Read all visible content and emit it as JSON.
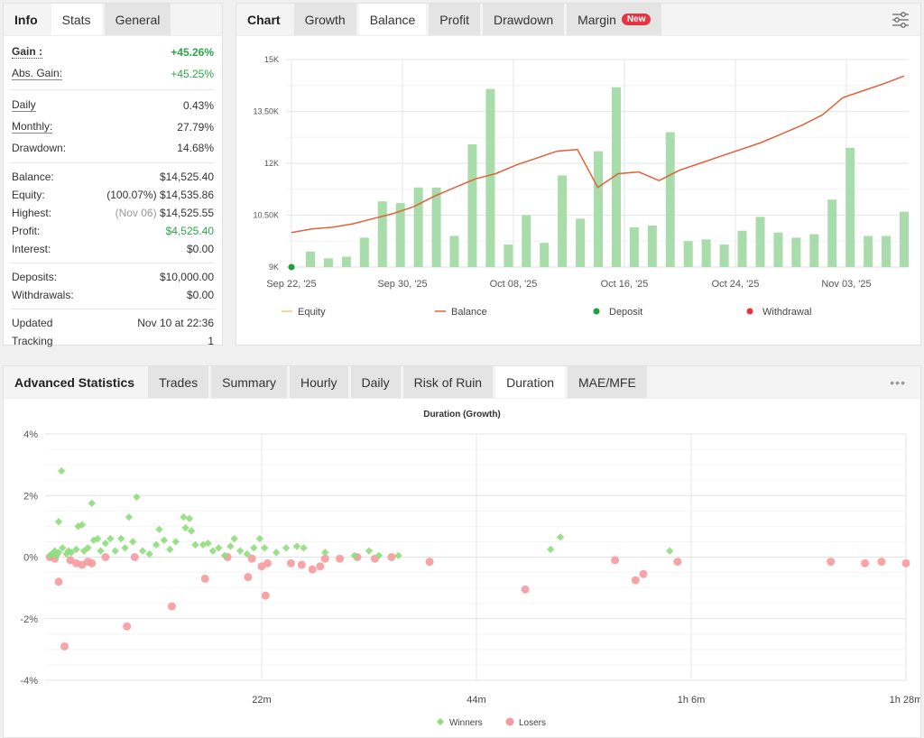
{
  "stats_panel": {
    "tabs": [
      {
        "label": "Info",
        "state": "title"
      },
      {
        "label": "Stats",
        "state": "active"
      },
      {
        "label": "General",
        "state": "inactive"
      }
    ],
    "gain": {
      "label": "Gain :",
      "value": "+45.26%"
    },
    "abs_gain": {
      "label": "Abs. Gain:",
      "value": "+45.25%"
    },
    "daily": {
      "label": "Daily",
      "value": "0.43%"
    },
    "monthly": {
      "label": "Monthly:",
      "value": "27.79%"
    },
    "drawdown": {
      "label": "Drawdown:",
      "value": "14.68%"
    },
    "balance": {
      "label": "Balance:",
      "value": "$14,525.40"
    },
    "equity": {
      "label": "Equity:",
      "prefix": "(100.07%)",
      "value": "$14,535.86"
    },
    "highest": {
      "label": "Highest:",
      "prefix": "(Nov 06)",
      "value": "$14,525.55"
    },
    "profit": {
      "label": "Profit:",
      "value": "$4,525.40"
    },
    "interest": {
      "label": "Interest:",
      "value": "$0.00"
    },
    "deposits": {
      "label": "Deposits:",
      "value": "$10,000.00"
    },
    "withdrawals": {
      "label": "Withdrawals:",
      "value": "$0.00"
    },
    "updated": {
      "label": "Updated",
      "value": "Nov 10 at 22:36"
    },
    "tracking": {
      "label": "Tracking",
      "value": "1"
    }
  },
  "chart_panel": {
    "tabs": [
      {
        "label": "Chart",
        "state": "title"
      },
      {
        "label": "Growth",
        "state": "inactive"
      },
      {
        "label": "Balance",
        "state": "active"
      },
      {
        "label": "Profit",
        "state": "inactive"
      },
      {
        "label": "Drawdown",
        "state": "inactive"
      },
      {
        "label": "Margin",
        "state": "inactive",
        "badge": "New"
      }
    ],
    "settings_icon": "sliders-icon",
    "legend": [
      "Equity",
      "Balance",
      "Deposit",
      "Withdrawal"
    ]
  },
  "adv_panel": {
    "tabs": [
      {
        "label": "Advanced Statistics",
        "state": "title"
      },
      {
        "label": "Trades",
        "state": "inactive"
      },
      {
        "label": "Summary",
        "state": "inactive"
      },
      {
        "label": "Hourly",
        "state": "inactive"
      },
      {
        "label": "Daily",
        "state": "inactive"
      },
      {
        "label": "Risk of Ruin",
        "state": "inactive"
      },
      {
        "label": "Duration",
        "state": "active"
      },
      {
        "label": "MAE/MFE",
        "state": "inactive"
      }
    ],
    "more_icon": "ellipsis-icon"
  },
  "colors": {
    "gain_green": "#2aa54a",
    "bar_green": "#a8dcaa",
    "balance_line": "#e0603a",
    "equity_line": "#f5c77e",
    "deposit": "#1f9e3c",
    "withdrawal": "#e5343f",
    "winner": "#8fdd7d",
    "loser": "#f59a9f",
    "badge": "#e5343f"
  },
  "chart_data": [
    {
      "type": "bar+line",
      "title": "Balance",
      "x_ticks": [
        "Sep 22, '25",
        "Sep 30, '25",
        "Oct 08, '25",
        "Oct 16, '25",
        "Oct 24, '25",
        "Nov 03, '25"
      ],
      "y_ticks": [
        "9K",
        "10.50K",
        "12K",
        "13.50K",
        "15K"
      ],
      "ylim": [
        9000,
        15000
      ],
      "grid": true,
      "legend_position": "bottom",
      "legend": [
        "Equity",
        "Balance",
        "Deposit",
        "Withdrawal"
      ],
      "bars": [
        9450,
        9250,
        9300,
        9850,
        10900,
        10850,
        11300,
        11300,
        9900,
        12550,
        14150,
        9650,
        10500,
        9700,
        11650,
        10400,
        12350,
        14200,
        10150,
        10200,
        12900,
        9750,
        9800,
        9650,
        10050,
        10450,
        10000,
        9850,
        9950,
        10950,
        12450,
        9900,
        9900,
        10600
      ],
      "balance": [
        10000,
        10100,
        10150,
        10250,
        10400,
        10550,
        10750,
        11050,
        11300,
        11550,
        11700,
        11950,
        12150,
        12350,
        12400,
        11300,
        11700,
        11750,
        11500,
        11800,
        12000,
        12200,
        12400,
        12600,
        12850,
        13100,
        13400,
        13900,
        14100,
        14300,
        14525
      ],
      "deposit": {
        "date": "Sep 22, '25",
        "value": 9000
      },
      "withdrawal": []
    },
    {
      "type": "scatter",
      "title": "Duration (Growth)",
      "xlabel": "",
      "ylabel": "",
      "x_ticks": [
        "22m",
        "44m",
        "1h 6m",
        "1h 28m"
      ],
      "y_ticks": [
        "4%",
        "2%",
        "0%",
        "-2%",
        "-4%"
      ],
      "ylim": [
        -4,
        4
      ],
      "xlim_minutes": [
        0,
        88
      ],
      "legend_position": "bottom",
      "series": [
        {
          "name": "Winners",
          "marker": "diamond",
          "points": [
            [
              0.3,
              0.05
            ],
            [
              0.5,
              0.1
            ],
            [
              0.8,
              0.2
            ],
            [
              1.0,
              0.05
            ],
            [
              1.2,
              0.15
            ],
            [
              1.5,
              2.8
            ],
            [
              1.2,
              1.15
            ],
            [
              1.6,
              0.3
            ],
            [
              2.0,
              0.1
            ],
            [
              2.2,
              0.2
            ],
            [
              2.5,
              0.15
            ],
            [
              3.0,
              0.25
            ],
            [
              3.2,
              1.0
            ],
            [
              3.6,
              1.05
            ],
            [
              3.8,
              0.2
            ],
            [
              4.2,
              0.3
            ],
            [
              4.6,
              1.75
            ],
            [
              4.8,
              0.55
            ],
            [
              5.2,
              0.6
            ],
            [
              5.5,
              0.2
            ],
            [
              6.0,
              0.45
            ],
            [
              6.5,
              0.6
            ],
            [
              7.0,
              0.2
            ],
            [
              7.6,
              0.6
            ],
            [
              8.0,
              0.3
            ],
            [
              8.4,
              1.3
            ],
            [
              8.8,
              0.5
            ],
            [
              9.2,
              1.95
            ],
            [
              9.8,
              0.2
            ],
            [
              10.5,
              0.1
            ],
            [
              11.2,
              0.4
            ],
            [
              11.5,
              0.9
            ],
            [
              12.0,
              0.55
            ],
            [
              12.6,
              0.25
            ],
            [
              13.2,
              0.5
            ],
            [
              14.0,
              1.3
            ],
            [
              14.2,
              0.95
            ],
            [
              14.6,
              1.25
            ],
            [
              14.8,
              0.85
            ],
            [
              15.2,
              0.4
            ],
            [
              16.0,
              0.4
            ],
            [
              16.5,
              0.45
            ],
            [
              17.0,
              0.2
            ],
            [
              17.6,
              0.3
            ],
            [
              18.2,
              0.05
            ],
            [
              18.8,
              0.35
            ],
            [
              19.2,
              0.6
            ],
            [
              19.8,
              0.2
            ],
            [
              20.5,
              0.1
            ],
            [
              21.2,
              0.3
            ],
            [
              21.8,
              0.6
            ],
            [
              22.3,
              0.3
            ],
            [
              23.5,
              0.15
            ],
            [
              24.5,
              0.3
            ],
            [
              25.6,
              0.35
            ],
            [
              26.3,
              0.3
            ],
            [
              28.5,
              0.15
            ],
            [
              31.5,
              0.05
            ],
            [
              33.0,
              0.2
            ],
            [
              34.0,
              0.05
            ],
            [
              36.0,
              0.05
            ],
            [
              51.6,
              0.25
            ],
            [
              52.6,
              0.65
            ],
            [
              63.8,
              0.2
            ]
          ]
        },
        {
          "name": "Losers",
          "marker": "circle",
          "points": [
            [
              0.3,
              0
            ],
            [
              0.8,
              -0.05
            ],
            [
              1.2,
              -0.8
            ],
            [
              1.8,
              -2.9
            ],
            [
              2.4,
              -0.1
            ],
            [
              3.0,
              -0.2
            ],
            [
              3.6,
              -0.25
            ],
            [
              4.2,
              -0.15
            ],
            [
              4.6,
              -0.2
            ],
            [
              6.0,
              0
            ],
            [
              8.2,
              -2.25
            ],
            [
              9.0,
              0
            ],
            [
              12.8,
              -1.6
            ],
            [
              16.2,
              -0.7
            ],
            [
              18.5,
              0
            ],
            [
              20.6,
              -0.65
            ],
            [
              21.0,
              -0.05
            ],
            [
              22.0,
              -0.3
            ],
            [
              22.4,
              -1.25
            ],
            [
              22.6,
              -0.2
            ],
            [
              25.0,
              -0.2
            ],
            [
              26.1,
              -0.25
            ],
            [
              27.2,
              -0.4
            ],
            [
              28.0,
              -0.3
            ],
            [
              28.5,
              -0.05
            ],
            [
              30.0,
              -0.05
            ],
            [
              31.8,
              0
            ],
            [
              33.6,
              -0.05
            ],
            [
              35.3,
              0
            ],
            [
              39.2,
              -0.15
            ],
            [
              49.0,
              -1.05
            ],
            [
              58.2,
              -0.1
            ],
            [
              60.3,
              -0.75
            ],
            [
              61.1,
              -0.55
            ],
            [
              64.6,
              -0.15
            ],
            [
              80.3,
              -0.15
            ],
            [
              83.8,
              -0.2
            ],
            [
              85.5,
              -0.15
            ],
            [
              88.0,
              -0.2
            ]
          ]
        }
      ]
    }
  ]
}
